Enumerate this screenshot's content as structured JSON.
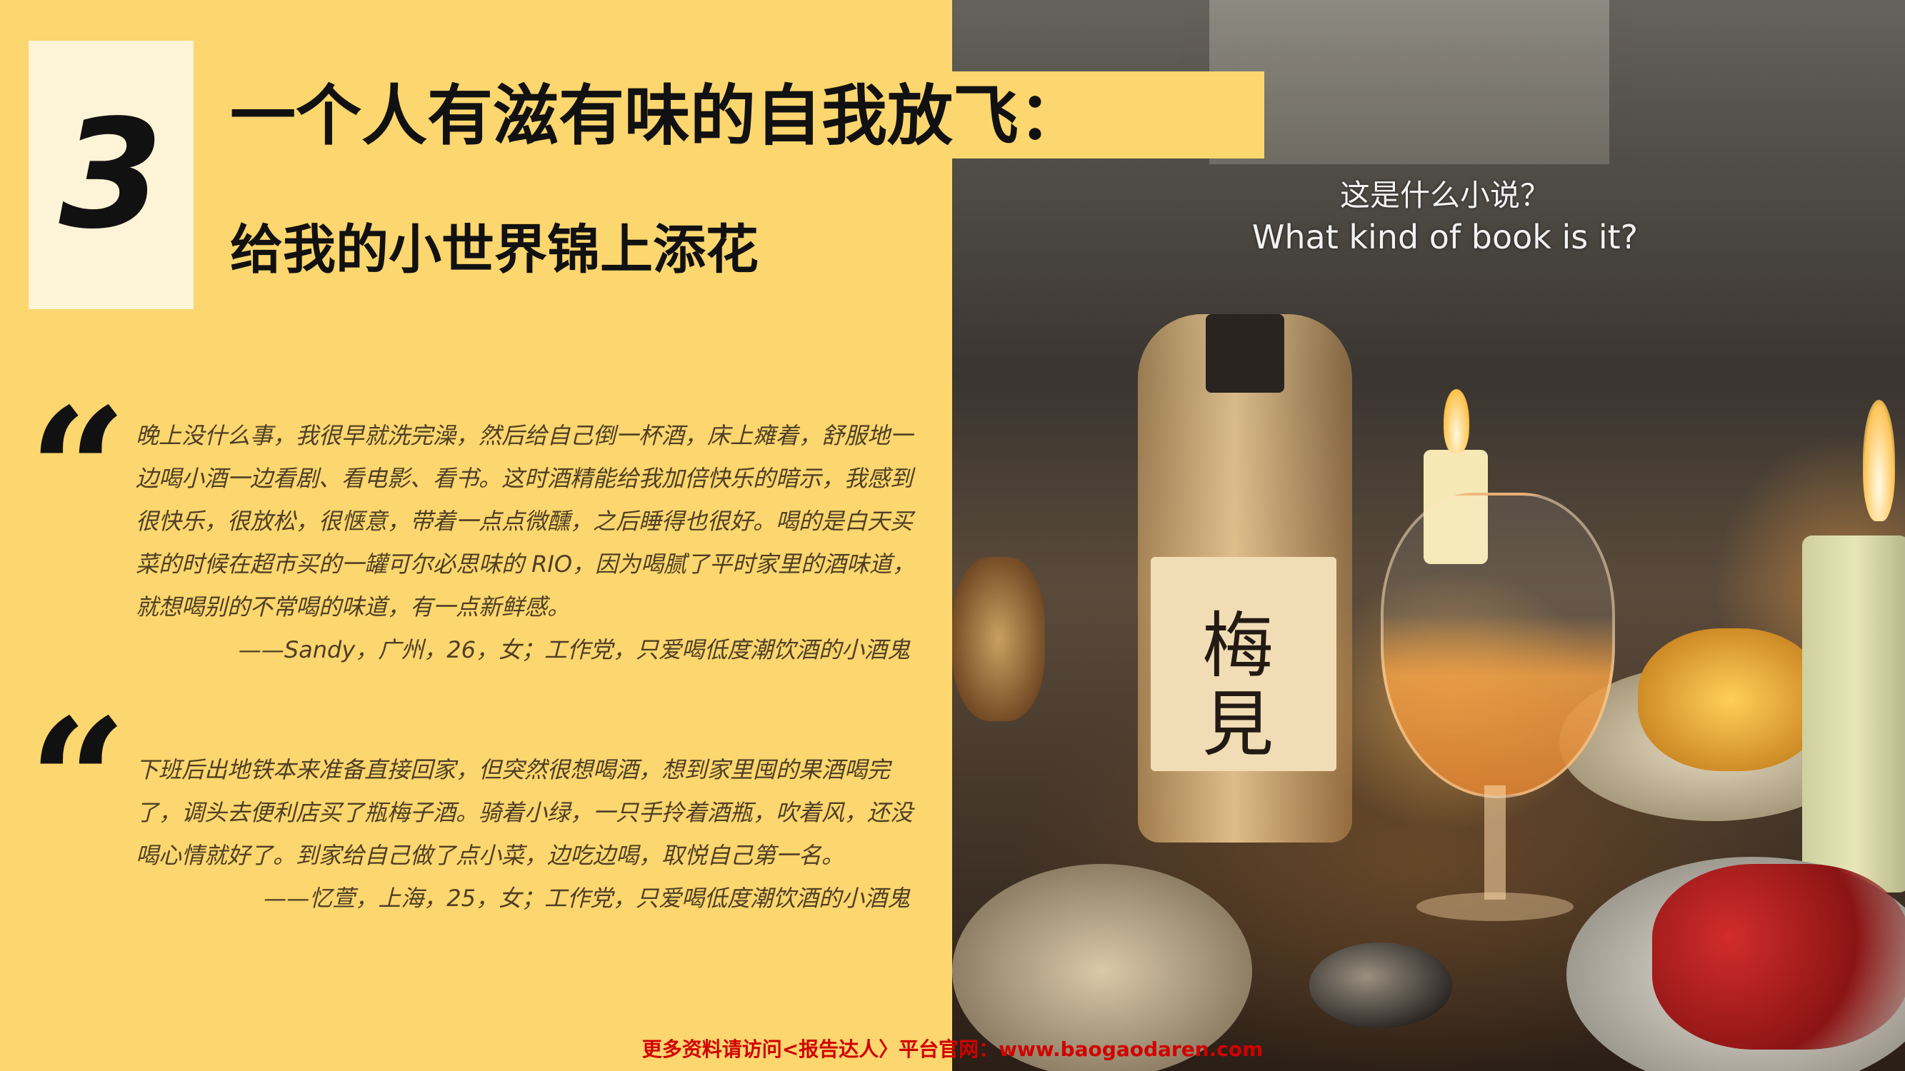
{
  "badge": {
    "number": "3"
  },
  "heading": {
    "title": "一个人有滋有味的自我放飞：",
    "subtitle": "给我的小世界锦上添花"
  },
  "photo": {
    "subtitle_cn": "这是什么小说？",
    "subtitle_en": "What kind of book is it?",
    "label_brand": "梅見"
  },
  "quotes": [
    {
      "mark": "“",
      "text": "晚上没什么事，我很早就洗完澡，然后给自己倒一杯酒，床上瘫着，舒服地一边喝小酒一边看剧、看电影、看书。这时酒精能给我加倍快乐的暗示，我感到很快乐，很放松，很惬意，带着一点点微醺，之后睡得也很好。喝的是白天买菜的时候在超市买的一罐可尔必思味的 RIO，因为喝腻了平时家里的酒味道，就想喝别的不常喝的味道，有一点新鲜感。",
      "attribution": "——Sandy，广州，26，女；工作党，只爱喝低度潮饮酒的小酒鬼"
    },
    {
      "mark": "“",
      "text": "下班后出地铁本来准备直接回家，但突然很想喝酒，想到家里囤的果酒喝完了，调头去便利店买了瓶梅子酒。骑着小绿，一只手拎着酒瓶，吹着风，还没喝心情就好了。到家给自己做了点小菜，边吃边喝，取悦自己第一名。",
      "attribution": "——忆萱，上海，25，女；工作党，只爱喝低度潮饮酒的小酒鬼"
    }
  ],
  "footer": {
    "text": "更多资料请访问<报告达人〉平台官网：www.baogaodaren.com"
  },
  "colors": {
    "background": "#fcd66e",
    "badge": "#fdf3d6",
    "footer": "#d10000"
  }
}
